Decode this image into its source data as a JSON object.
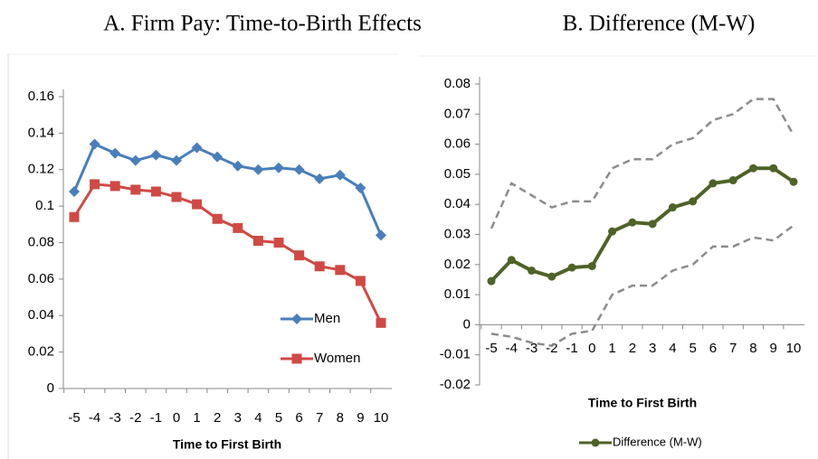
{
  "chart_data": [
    {
      "type": "line",
      "title": "A.  Firm Pay: Time-to-Birth Effects",
      "x_label": "Time to First Birth",
      "categories": [
        -5,
        -4,
        -3,
        -2,
        -1,
        0,
        1,
        2,
        3,
        4,
        5,
        6,
        7,
        8,
        9,
        10
      ],
      "series": [
        {
          "name": "Men",
          "color": "#4a7ebb",
          "marker": "diamond",
          "values": [
            0.108,
            0.134,
            0.129,
            0.125,
            0.128,
            0.125,
            0.132,
            0.127,
            0.122,
            0.12,
            0.121,
            0.12,
            0.115,
            0.117,
            0.11,
            0.084
          ]
        },
        {
          "name": "Women",
          "color": "#cf4a45",
          "marker": "square",
          "values": [
            0.094,
            0.112,
            0.111,
            0.109,
            0.108,
            0.105,
            0.101,
            0.093,
            0.088,
            0.081,
            0.08,
            0.073,
            0.067,
            0.065,
            0.059,
            0.036
          ]
        }
      ],
      "ylim": [
        0,
        0.16
      ],
      "yticks": [
        0,
        0.02,
        0.04,
        0.06,
        0.08,
        0.1,
        0.12,
        0.14,
        0.16
      ],
      "legend": "lower right"
    },
    {
      "type": "line",
      "title": "B. Difference (M-W)",
      "x_label": "Time to First Birth",
      "categories": [
        -5,
        -4,
        -3,
        -2,
        -1,
        0,
        1,
        2,
        3,
        4,
        5,
        6,
        7,
        8,
        9,
        10
      ],
      "series": [
        {
          "name": "Difference (M-W)",
          "color": "#4f6228",
          "marker": "circle",
          "values": [
            0.0145,
            0.0215,
            0.018,
            0.016,
            0.019,
            0.0195,
            0.031,
            0.034,
            0.0335,
            0.039,
            0.041,
            0.047,
            0.048,
            0.052,
            0.052,
            0.0475
          ]
        }
      ],
      "ci_upper": {
        "color": "#8c8c8c",
        "style": "dashed",
        "values": [
          0.032,
          0.047,
          0.043,
          0.039,
          0.041,
          0.041,
          0.052,
          0.055,
          0.055,
          0.06,
          0.062,
          0.068,
          0.07,
          0.075,
          0.075,
          0.063
        ]
      },
      "ci_lower": {
        "color": "#8c8c8c",
        "style": "dashed",
        "values": [
          -0.003,
          -0.004,
          -0.006,
          -0.007,
          -0.003,
          -0.002,
          0.01,
          0.013,
          0.013,
          0.018,
          0.02,
          0.026,
          0.026,
          0.029,
          0.028,
          0.033
        ]
      },
      "ylim": [
        -0.02,
        0.08
      ],
      "yticks": [
        -0.02,
        -0.01,
        0,
        0.01,
        0.02,
        0.03,
        0.04,
        0.05,
        0.06,
        0.07,
        0.08
      ],
      "legend": "bottom"
    }
  ]
}
